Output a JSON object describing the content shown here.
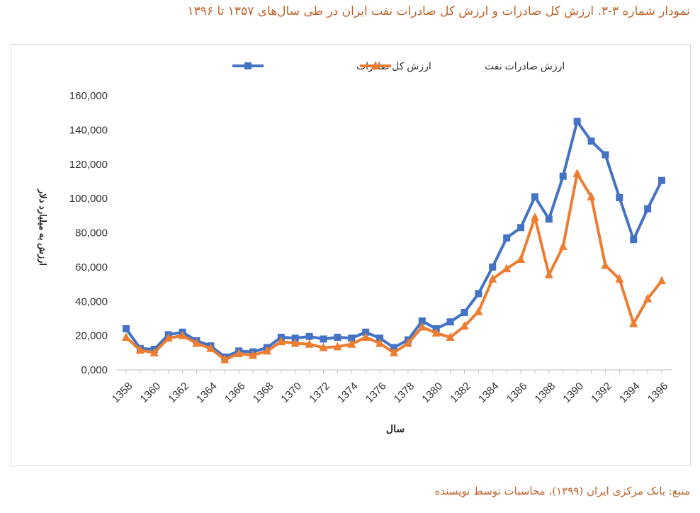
{
  "title": "نمودار شماره ۳-۳. ارزش کل صادرات و ارزش کل صادرات نفت ایران در طی سال‌های ۱۳۵۷ تا ۱۳۹۶",
  "source": "منبع: بانک مرکزی ایران (۱۳۹۹)، محاسبات توسط نویسنده",
  "colors": {
    "total": "#4472c4",
    "oil": "#ed7d31",
    "title": "#c0632a"
  },
  "chart_data": {
    "type": "line",
    "xlabel": "سال",
    "ylabel": "ارزش به میلیارد دلار",
    "ylim": [
      0,
      160000
    ],
    "yticks": [
      "0,000",
      "20,000",
      "40,000",
      "60,000",
      "80,000",
      "100,000",
      "120,000",
      "140,000",
      "160,000"
    ],
    "xticks": [
      "1358",
      "1360",
      "1362",
      "1364",
      "1366",
      "1368",
      "1370",
      "1372",
      "1374",
      "1376",
      "1378",
      "1380",
      "1382",
      "1384",
      "1386",
      "1388",
      "1390",
      "1392",
      "1394",
      "1396"
    ],
    "x": [
      1358,
      1359,
      1360,
      1361,
      1362,
      1363,
      1364,
      1365,
      1366,
      1367,
      1368,
      1369,
      1370,
      1371,
      1372,
      1373,
      1374,
      1375,
      1376,
      1377,
      1378,
      1379,
      1380,
      1381,
      1382,
      1383,
      1384,
      1385,
      1386,
      1387,
      1388,
      1389,
      1390,
      1391,
      1392,
      1393,
      1394,
      1395,
      1396
    ],
    "legend_position": "top",
    "series": [
      {
        "name": "ارزش کل صادرات",
        "marker": "square",
        "values": [
          24000,
          12500,
          12000,
          20500,
          22000,
          17000,
          14000,
          7500,
          11000,
          10500,
          13000,
          19000,
          18500,
          19500,
          18000,
          19000,
          18500,
          22000,
          18500,
          13000,
          17500,
          28500,
          24000,
          28000,
          33500,
          44500,
          60000,
          77000,
          83000,
          101000,
          88000,
          113000,
          145000,
          133500,
          125500,
          100500,
          76000,
          94000,
          110500
        ]
      },
      {
        "name": "ارزش صادرات نفت",
        "marker": "triangle",
        "values": [
          19000,
          11500,
          10000,
          18500,
          20000,
          15500,
          12500,
          6000,
          9500,
          8500,
          11000,
          16500,
          15500,
          15000,
          13000,
          13500,
          15000,
          19000,
          15500,
          10000,
          15500,
          25000,
          21500,
          19000,
          25500,
          34000,
          53000,
          59000,
          64500,
          89000,
          55500,
          72000,
          114500,
          101000,
          61000,
          53000,
          27000,
          41500,
          52000
        ]
      }
    ]
  }
}
